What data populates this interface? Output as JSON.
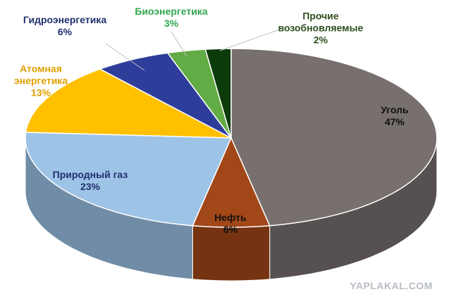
{
  "chart_data": {
    "type": "pie3d",
    "categories": [
      "Уголь",
      "Нефть",
      "Природный газ",
      "Атомная энергетика",
      "Гидроэнергетика",
      "Биоэнергетика",
      "Прочие возобновляемые"
    ],
    "values": [
      47,
      6,
      23,
      13,
      6,
      3,
      2
    ],
    "value_labels": [
      "47%",
      "6%",
      "23%",
      "13%",
      "6%",
      "3%",
      "2%"
    ],
    "colors": [
      "#77706f",
      "#a24717",
      "#9dc3e6",
      "#ffc000",
      "#2f3d9a",
      "#62ac45",
      "#0b3b0b"
    ],
    "label_colors": [
      "#111111",
      "#111111",
      "#1f2f6e",
      "#e0a000",
      "#1f2f6e",
      "#2fa84f",
      "#2f4f1f"
    ],
    "watermark": "YAPLAKAL.COM"
  }
}
